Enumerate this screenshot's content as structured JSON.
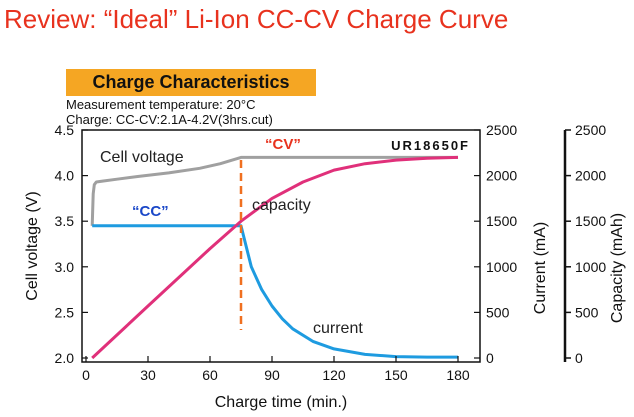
{
  "page": {
    "title": "Review:  “Ideal” Li-Ion CC-CV Charge Curve",
    "banner": "Charge Characteristics",
    "measurement": "Measurement temperature: 20°C",
    "charge_spec": "Charge: CC-CV:2.1A-4.2V(3hrs.cut)"
  },
  "colors": {
    "title": "#e8321e",
    "banner_bg": "#f5a623",
    "voltage": "#a0a0a0",
    "capacity": "#e0307a",
    "current": "#1e9be0",
    "cc_label": "#1a47c8",
    "cv_label": "#e8321e",
    "cv_marker": "#f07020"
  },
  "chart_data": {
    "type": "line",
    "model_label": "UR18650F",
    "xlabel": "Charge time (min.)",
    "xlim": [
      0,
      180
    ],
    "x_ticks": [
      0,
      30,
      60,
      90,
      120,
      150,
      180
    ],
    "axes": {
      "voltage": {
        "label": "Cell voltage (V)",
        "range": [
          2.0,
          4.5
        ],
        "ticks": [
          "2.0",
          "2.5",
          "3.0",
          "3.5",
          "4.0",
          "4.5"
        ]
      },
      "current": {
        "label": "Current (mA)",
        "range": [
          0,
          2500
        ],
        "ticks": [
          "0",
          "500",
          "1000",
          "1500",
          "2000",
          "2500"
        ]
      },
      "capacity": {
        "label": "Capacity (mAh)",
        "range": [
          0,
          2500
        ],
        "ticks": [
          "0",
          "500",
          "1000",
          "1500",
          "2000",
          "2500"
        ]
      }
    },
    "series": [
      {
        "name": "Cell voltage",
        "axis": "voltage",
        "x": [
          3,
          3.5,
          4,
          5,
          8,
          15,
          25,
          40,
          55,
          65,
          75,
          90,
          120,
          150,
          180
        ],
        "y": [
          3.45,
          3.8,
          3.9,
          3.93,
          3.94,
          3.96,
          3.99,
          4.03,
          4.08,
          4.13,
          4.2,
          4.2,
          4.2,
          4.2,
          4.2
        ]
      },
      {
        "name": "current",
        "axis": "current",
        "x": [
          3,
          10,
          30,
          50,
          70,
          75,
          80,
          85,
          90,
          95,
          100,
          110,
          120,
          135,
          150,
          165,
          180
        ],
        "y": [
          1450,
          1450,
          1450,
          1450,
          1450,
          1450,
          1000,
          750,
          570,
          430,
          320,
          180,
          100,
          40,
          15,
          10,
          10
        ]
      },
      {
        "name": "capacity",
        "axis": "capacity",
        "x": [
          3,
          30,
          60,
          75,
          90,
          105,
          120,
          135,
          150,
          165,
          180
        ],
        "y": [
          0,
          570,
          1200,
          1500,
          1750,
          1930,
          2060,
          2130,
          2170,
          2190,
          2200
        ]
      }
    ],
    "cv_marker_x": 75,
    "annotations": {
      "cc": "“CC”",
      "cv": "“CV”"
    }
  }
}
